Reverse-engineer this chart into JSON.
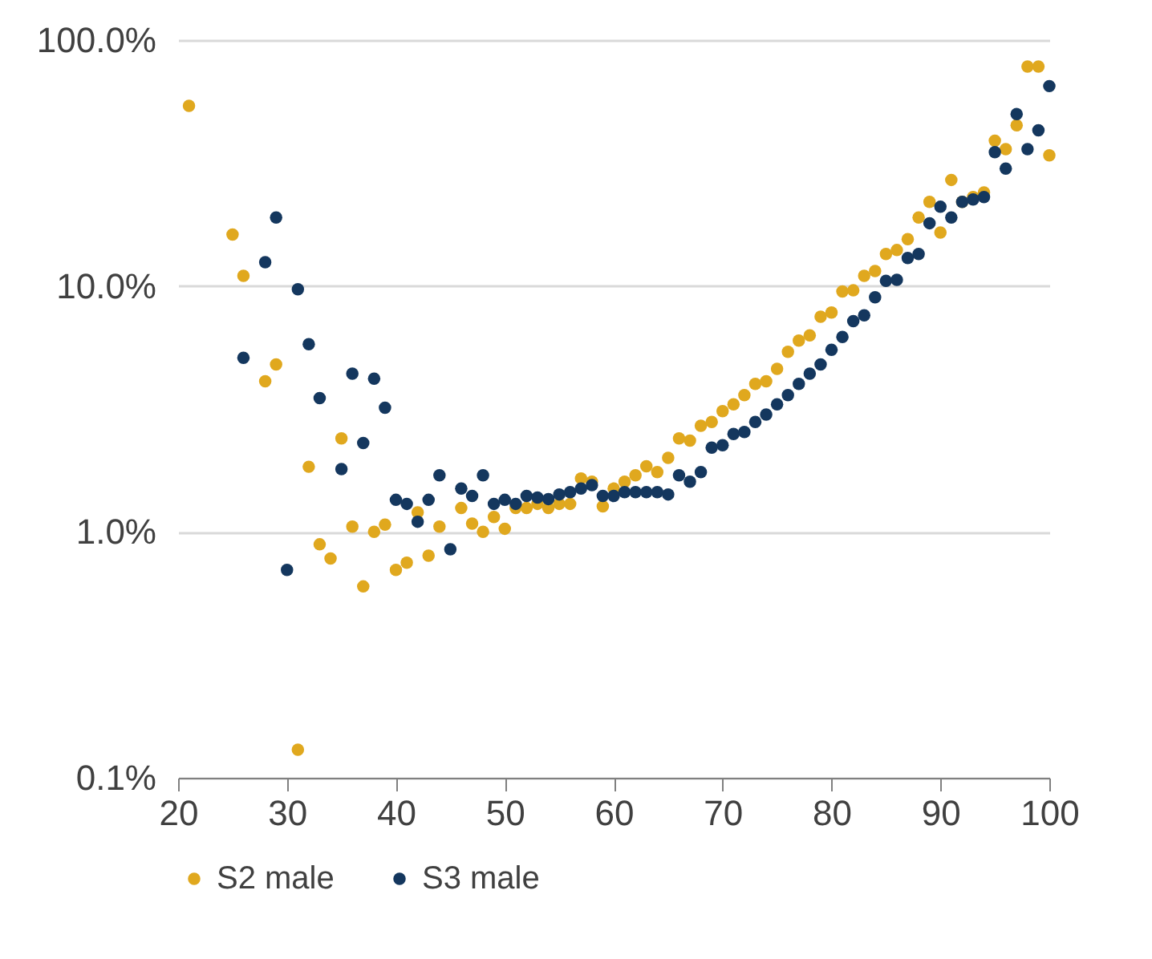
{
  "chart_data": {
    "type": "scatter",
    "log": "y",
    "grid": "y",
    "legend": "bottom",
    "marker": "circle",
    "xlim": [
      20,
      100
    ],
    "xticks": [
      20,
      30,
      40,
      50,
      60,
      70,
      80,
      90,
      100
    ],
    "ylim": [
      0.1,
      100
    ],
    "yticks": [
      {
        "value": 0.1,
        "label": "0.1%"
      },
      {
        "value": 1,
        "label": "1.0%"
      },
      {
        "value": 10,
        "label": "10.0%"
      },
      {
        "value": 100,
        "label": "100.0%"
      }
    ],
    "series": [
      {
        "name": "S2 male",
        "color": "#e0a81e",
        "x": [
          21,
          25,
          26,
          28,
          29,
          31,
          32,
          33,
          34,
          35,
          36,
          37,
          38,
          39,
          40,
          41,
          42,
          43,
          44,
          46,
          47,
          48,
          49,
          50,
          51,
          52,
          53,
          54,
          55,
          56,
          57,
          58,
          59,
          60,
          61,
          62,
          63,
          64,
          65,
          66,
          67,
          68,
          69,
          70,
          71,
          72,
          73,
          74,
          75,
          76,
          77,
          78,
          79,
          80,
          81,
          82,
          83,
          84,
          85,
          86,
          87,
          88,
          89,
          90,
          91,
          92,
          93,
          94,
          95,
          96,
          97,
          98,
          99,
          100
        ],
        "values": [
          54,
          16.2,
          11,
          4.1,
          4.8,
          0.13,
          1.84,
          0.89,
          0.78,
          2.4,
          1.05,
          0.6,
          1.0,
          1.07,
          0.7,
          0.75,
          1.2,
          0.8,
          1.05,
          1.25,
          1.08,
          1.0,
          1.15,
          1.03,
          1.25,
          1.25,
          1.3,
          1.25,
          1.3,
          1.3,
          1.65,
          1.6,
          1.27,
          1.5,
          1.6,
          1.7,
          1.85,
          1.75,
          2.0,
          2.4,
          2.35,
          2.7,
          2.8,
          3.1,
          3.3,
          3.6,
          4.0,
          4.1,
          4.6,
          5.4,
          6.0,
          6.3,
          7.5,
          7.8,
          9.5,
          9.6,
          11,
          11.5,
          13.5,
          14,
          15.5,
          19,
          22,
          16.5,
          27,
          22,
          23,
          24,
          39,
          36,
          45,
          78,
          78,
          34
        ]
      },
      {
        "name": "S3 male",
        "color": "#14375e",
        "x": [
          26,
          28,
          29,
          30,
          31,
          32,
          33,
          35,
          36,
          37,
          38,
          39,
          40,
          41,
          42,
          43,
          44,
          45,
          46,
          47,
          48,
          49,
          50,
          51,
          52,
          53,
          54,
          55,
          56,
          57,
          58,
          59,
          60,
          61,
          62,
          63,
          64,
          65,
          66,
          67,
          68,
          69,
          70,
          71,
          72,
          73,
          74,
          75,
          76,
          77,
          78,
          79,
          80,
          81,
          82,
          83,
          84,
          85,
          86,
          87,
          88,
          89,
          90,
          91,
          92,
          93,
          94,
          95,
          96,
          97,
          98,
          99,
          100
        ],
        "values": [
          5.1,
          12.5,
          19,
          0.7,
          9.7,
          5.8,
          3.5,
          1.8,
          4.4,
          2.3,
          4.2,
          3.2,
          1.35,
          1.3,
          1.1,
          1.35,
          1.7,
          0.85,
          1.5,
          1.4,
          1.7,
          1.3,
          1.35,
          1.3,
          1.4,
          1.38,
          1.36,
          1.42,
          1.45,
          1.5,
          1.55,
          1.4,
          1.4,
          1.45,
          1.45,
          1.45,
          1.45,
          1.42,
          1.7,
          1.6,
          1.75,
          2.2,
          2.25,
          2.5,
          2.55,
          2.8,
          3.0,
          3.3,
          3.6,
          4.0,
          4.4,
          4.8,
          5.5,
          6.2,
          7.2,
          7.6,
          9.0,
          10.5,
          10.6,
          13,
          13.5,
          18,
          21,
          19,
          22,
          22.5,
          23,
          35,
          30,
          50,
          36,
          43,
          65
        ]
      }
    ]
  }
}
